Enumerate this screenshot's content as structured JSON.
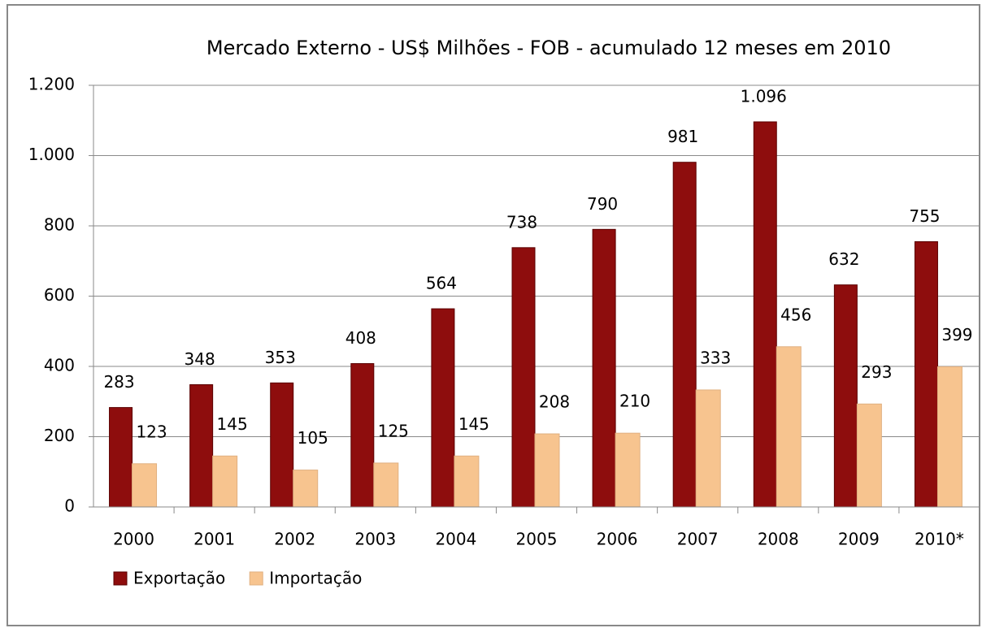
{
  "chart_data": {
    "type": "bar",
    "title": "Mercado Externo - US$ Milhões - FOB - acumulado 12 meses em 2010",
    "categories": [
      "2000",
      "2001",
      "2002",
      "2003",
      "2004",
      "2005",
      "2006",
      "2007",
      "2008",
      "2009",
      "2010*"
    ],
    "series": [
      {
        "name": "Exportação",
        "color": "#8e0d0d",
        "values": [
          283,
          348,
          353,
          408,
          564,
          738,
          790,
          981,
          1096,
          632,
          755
        ],
        "value_labels": [
          "283",
          "348",
          "353",
          "408",
          "564",
          "738",
          "790",
          "981",
          "1.096",
          "632",
          "755"
        ]
      },
      {
        "name": "Importação",
        "color": "#f7c48f",
        "values": [
          123,
          145,
          105,
          125,
          145,
          208,
          210,
          333,
          456,
          293,
          399
        ]
      }
    ],
    "ylim": [
      0,
      1200
    ],
    "yticks": [
      0,
      200,
      400,
      600,
      800,
      {
        "value": 1000,
        "label": "1.000"
      },
      {
        "value": 1200,
        "label": "1.200"
      }
    ],
    "grid": true,
    "legend": "bottom-left"
  }
}
